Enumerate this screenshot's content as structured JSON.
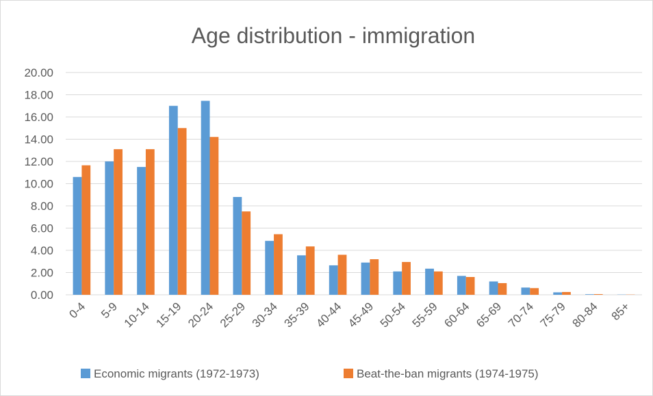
{
  "chart_data": {
    "type": "bar",
    "title": "Age distribution - immigration",
    "xlabel": "",
    "ylabel": "",
    "ylim": [
      0,
      20
    ],
    "yticks": [
      "0.00",
      "2.00",
      "4.00",
      "6.00",
      "8.00",
      "10.00",
      "12.00",
      "14.00",
      "16.00",
      "18.00",
      "20.00"
    ],
    "categories": [
      "0-4",
      "5-9",
      "10-14",
      "15-19",
      "20-24",
      "25-29",
      "30-34",
      "35-39",
      "40-44",
      "45-49",
      "50-54",
      "55-59",
      "60-64",
      "65-69",
      "70-74",
      "75-79",
      "80-84",
      "85+"
    ],
    "series": [
      {
        "name": "Economic migrants (1972-1973)",
        "color": "#5b9bd5",
        "values": [
          10.6,
          12.0,
          11.5,
          17.0,
          17.45,
          8.8,
          4.85,
          3.55,
          2.65,
          2.9,
          2.1,
          2.35,
          1.7,
          1.2,
          0.65,
          0.22,
          0.05,
          0.02
        ]
      },
      {
        "name": "Beat-the-ban migrants (1974-1975)",
        "color": "#ed7d31",
        "values": [
          11.65,
          13.1,
          13.1,
          15.0,
          14.2,
          7.5,
          5.45,
          4.35,
          3.6,
          3.2,
          2.95,
          2.1,
          1.6,
          1.05,
          0.6,
          0.25,
          0.06,
          0.02
        ]
      }
    ],
    "grid": true,
    "legend_position": "bottom"
  }
}
